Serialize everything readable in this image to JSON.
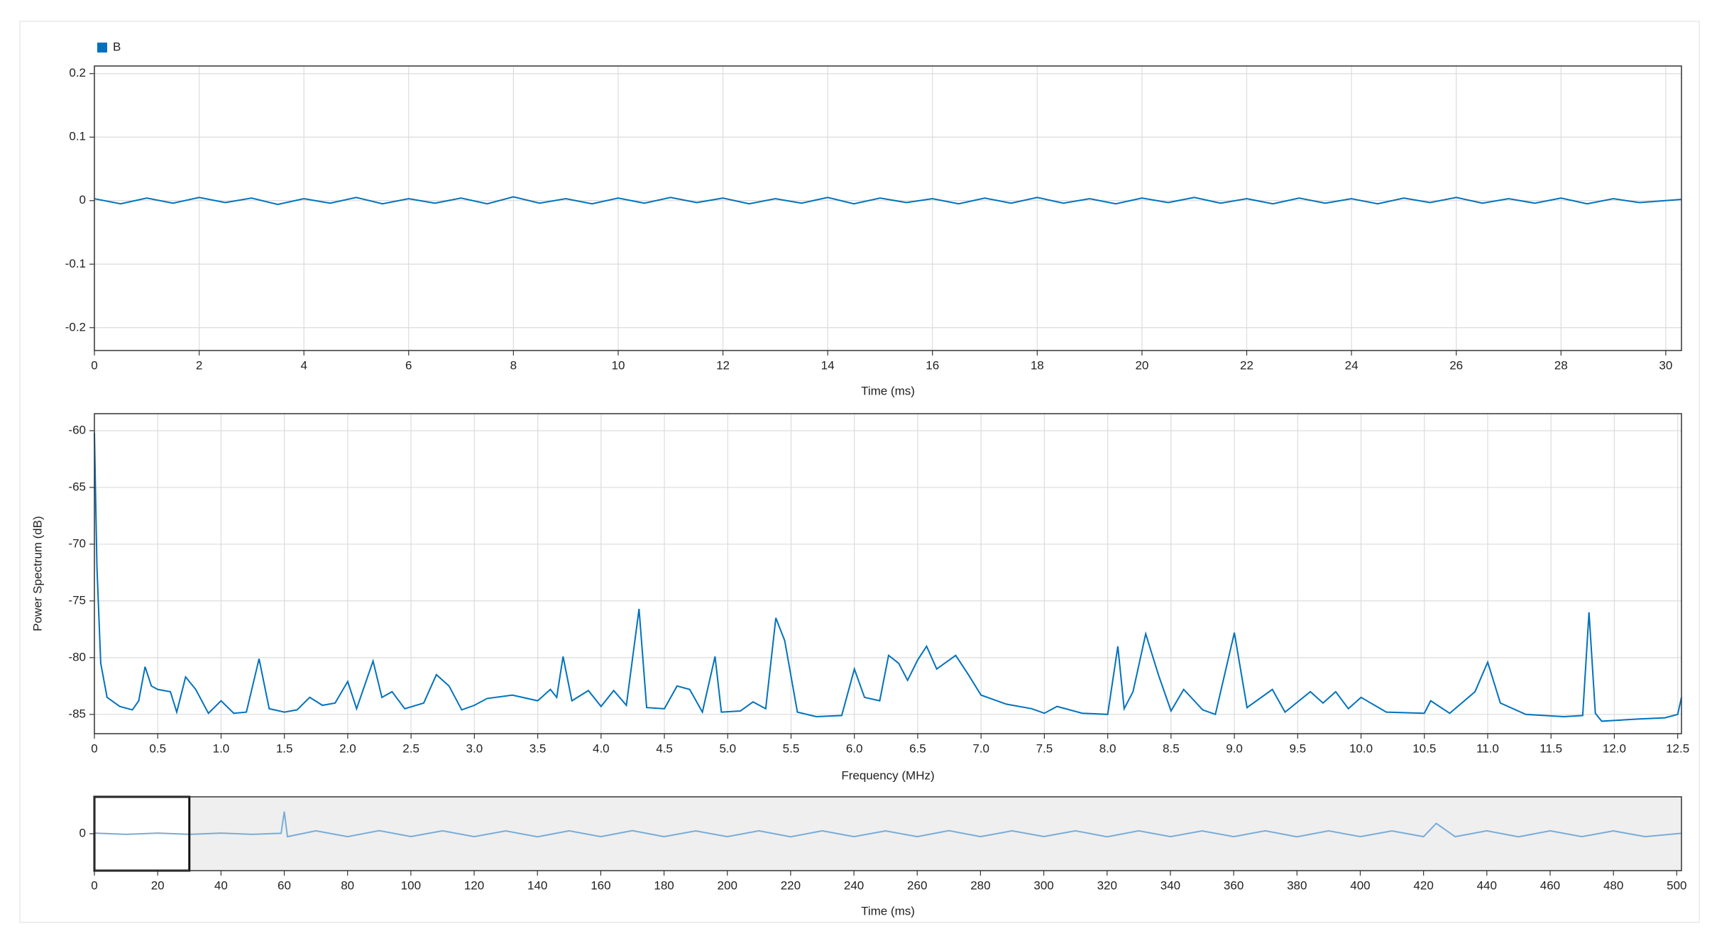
{
  "chart_data": [
    {
      "type": "line",
      "xlabel": "Time (ms)",
      "legend": "top-left",
      "xlim": [
        0,
        30.3
      ],
      "ylim": [
        -0.236,
        0.212
      ],
      "xticks": [
        0,
        2,
        4,
        6,
        8,
        10,
        12,
        14,
        16,
        18,
        20,
        22,
        24,
        26,
        28,
        30
      ],
      "yticks": [
        -0.2,
        -0.1,
        0,
        0.1,
        0.2
      ],
      "grid": true,
      "series": [
        {
          "name": "B",
          "color": "#0072bd",
          "x": [
            0,
            0.5,
            1,
            1.5,
            2,
            2.5,
            3,
            3.5,
            4,
            4.5,
            5,
            5.5,
            6,
            6.5,
            7,
            7.5,
            8,
            8.5,
            9,
            9.5,
            10,
            10.5,
            11,
            11.5,
            12,
            12.5,
            13,
            13.5,
            14,
            14.5,
            15,
            15.5,
            16,
            16.5,
            17,
            17.5,
            18,
            18.5,
            19,
            19.5,
            20,
            20.5,
            21,
            21.5,
            22,
            22.5,
            23,
            23.5,
            24,
            24.5,
            25,
            25.5,
            26,
            26.5,
            27,
            27.5,
            28,
            28.5,
            29,
            29.5,
            30.3
          ],
          "values": [
            0.003,
            -0.005,
            0.004,
            -0.004,
            0.005,
            -0.003,
            0.004,
            -0.006,
            0.003,
            -0.004,
            0.005,
            -0.005,
            0.003,
            -0.004,
            0.004,
            -0.005,
            0.006,
            -0.004,
            0.003,
            -0.005,
            0.004,
            -0.004,
            0.005,
            -0.003,
            0.004,
            -0.005,
            0.003,
            -0.004,
            0.005,
            -0.005,
            0.004,
            -0.003,
            0.003,
            -0.005,
            0.004,
            -0.004,
            0.005,
            -0.004,
            0.003,
            -0.005,
            0.004,
            -0.003,
            0.005,
            -0.004,
            0.003,
            -0.005,
            0.004,
            -0.004,
            0.003,
            -0.005,
            0.004,
            -0.003,
            0.005,
            -0.004,
            0.003,
            -0.004,
            0.004,
            -0.005,
            0.003,
            -0.003,
            0.002
          ]
        }
      ]
    },
    {
      "type": "line",
      "xlabel": "Frequency (MHz)",
      "ylabel": "Power Spectrum (dB)",
      "xlim": [
        0,
        12.53
      ],
      "ylim": [
        -86.7,
        -58.5
      ],
      "xticks": [
        0,
        0.5,
        {
          "value": 1,
          "label": "1.0"
        },
        1.5,
        {
          "value": 2,
          "label": "2.0"
        },
        2.5,
        {
          "value": 3,
          "label": "3.0"
        },
        3.5,
        {
          "value": 4,
          "label": "4.0"
        },
        4.5,
        {
          "value": 5,
          "label": "5.0"
        },
        5.5,
        {
          "value": 6,
          "label": "6.0"
        },
        6.5,
        {
          "value": 7,
          "label": "7.0"
        },
        7.5,
        {
          "value": 8,
          "label": "8.0"
        },
        8.5,
        {
          "value": 9,
          "label": "9.0"
        },
        9.5,
        {
          "value": 10,
          "label": "10.0"
        },
        10.5,
        {
          "value": 11,
          "label": "11.0"
        },
        11.5,
        {
          "value": 12,
          "label": "12.0"
        },
        12.5
      ],
      "yticks": [
        -85,
        -80,
        -75,
        -70,
        -65,
        -60
      ],
      "grid": true,
      "series": [
        {
          "color": "#0072bd",
          "x": [
            0,
            0.02,
            0.05,
            0.1,
            0.2,
            0.3,
            0.35,
            0.4,
            0.45,
            0.5,
            0.6,
            0.65,
            0.72,
            0.8,
            0.9,
            1.0,
            1.1,
            1.2,
            1.3,
            1.38,
            1.5,
            1.6,
            1.7,
            1.8,
            1.9,
            2.0,
            2.07,
            2.2,
            2.27,
            2.35,
            2.45,
            2.6,
            2.7,
            2.8,
            2.9,
            3.0,
            3.1,
            3.3,
            3.5,
            3.6,
            3.65,
            3.7,
            3.77,
            3.9,
            4.0,
            4.1,
            4.2,
            4.3,
            4.36,
            4.5,
            4.6,
            4.7,
            4.8,
            4.9,
            4.95,
            5.1,
            5.2,
            5.3,
            5.38,
            5.45,
            5.55,
            5.7,
            5.9,
            6.0,
            6.08,
            6.2,
            6.27,
            6.35,
            6.42,
            6.5,
            6.57,
            6.65,
            6.8,
            6.9,
            7.0,
            7.2,
            7.4,
            7.5,
            7.6,
            7.8,
            8.0,
            8.08,
            8.13,
            8.2,
            8.3,
            8.4,
            8.5,
            8.6,
            8.75,
            8.85,
            9.0,
            9.1,
            9.3,
            9.4,
            9.6,
            9.7,
            9.8,
            9.9,
            10.0,
            10.2,
            10.5,
            10.55,
            10.7,
            10.9,
            11.0,
            11.1,
            11.3,
            11.6,
            11.75,
            11.8,
            11.85,
            11.9,
            12.2,
            12.4,
            12.5,
            12.53
          ],
          "values": [
            -60.2,
            -72,
            -80.5,
            -83.5,
            -84.3,
            -84.6,
            -83.8,
            -80.8,
            -82.5,
            -82.8,
            -83,
            -84.8,
            -81.7,
            -82.8,
            -84.9,
            -83.8,
            -84.9,
            -84.8,
            -80.1,
            -84.5,
            -84.8,
            -84.6,
            -83.5,
            -84.2,
            -84,
            -82.1,
            -84.5,
            -80.3,
            -83.5,
            -83,
            -84.5,
            -84,
            -81.5,
            -82.5,
            -84.6,
            -84.2,
            -83.6,
            -83.3,
            -83.8,
            -82.8,
            -83.5,
            -79.9,
            -83.8,
            -82.9,
            -84.3,
            -82.9,
            -84.2,
            -75.7,
            -84.4,
            -84.5,
            -82.5,
            -82.8,
            -84.8,
            -79.9,
            -84.8,
            -84.7,
            -83.9,
            -84.5,
            -76.5,
            -78.5,
            -84.8,
            -85.2,
            -85.1,
            -81,
            -83.5,
            -83.8,
            -79.8,
            -80.5,
            -82,
            -80.2,
            -79,
            -81,
            -79.8,
            -81.5,
            -83.3,
            -84.1,
            -84.5,
            -84.9,
            -84.3,
            -84.9,
            -85,
            -79,
            -84.5,
            -83,
            -77.9,
            -81.5,
            -84.7,
            -82.8,
            -84.6,
            -85,
            -77.8,
            -84.4,
            -82.8,
            -84.8,
            -83,
            -84,
            -83,
            -84.5,
            -83.5,
            -84.8,
            -84.9,
            -83.8,
            -84.9,
            -83,
            -80.4,
            -84,
            -85,
            -85.2,
            -85.1,
            -76,
            -84.9,
            -85.6,
            -85.4,
            -85.3,
            -85,
            -83.5
          ]
        }
      ]
    },
    {
      "type": "line",
      "xlabel": "Time (ms)",
      "xlim": [
        0,
        501.5
      ],
      "ylim": [
        -0.25,
        0.25
      ],
      "window": [
        0,
        30
      ],
      "xticks": [
        0,
        20,
        40,
        60,
        80,
        100,
        120,
        140,
        160,
        180,
        200,
        220,
        240,
        260,
        280,
        300,
        320,
        340,
        360,
        380,
        400,
        420,
        440,
        460,
        480,
        500
      ],
      "yticks": [
        0
      ],
      "grid": false,
      "series": [
        {
          "color": "#78acd8",
          "x": [
            0,
            10,
            20,
            30,
            40,
            50,
            59,
            60,
            61,
            70,
            80,
            90,
            100,
            110,
            120,
            130,
            140,
            150,
            160,
            170,
            180,
            190,
            200,
            210,
            220,
            230,
            240,
            250,
            260,
            270,
            280,
            290,
            300,
            310,
            320,
            330,
            340,
            350,
            360,
            370,
            380,
            390,
            400,
            410,
            420,
            424,
            430,
            440,
            450,
            460,
            470,
            480,
            490,
            501.5
          ],
          "values": [
            0.004,
            -0.004,
            0.004,
            -0.004,
            0.004,
            -0.004,
            0.003,
            0.15,
            -0.02,
            0.02,
            -0.02,
            0.021,
            -0.019,
            0.02,
            -0.02,
            0.019,
            -0.021,
            0.02,
            -0.02,
            0.021,
            -0.02,
            0.019,
            -0.02,
            0.02,
            -0.021,
            0.02,
            -0.02,
            0.019,
            -0.02,
            0.021,
            -0.02,
            0.02,
            -0.019,
            0.02,
            -0.021,
            0.02,
            -0.02,
            0.019,
            -0.02,
            0.02,
            -0.021,
            0.02,
            -0.02,
            0.019,
            -0.02,
            0.07,
            -0.02,
            0.02,
            -0.021,
            0.02,
            -0.02,
            0.019,
            -0.02,
            0.003
          ]
        }
      ]
    }
  ]
}
